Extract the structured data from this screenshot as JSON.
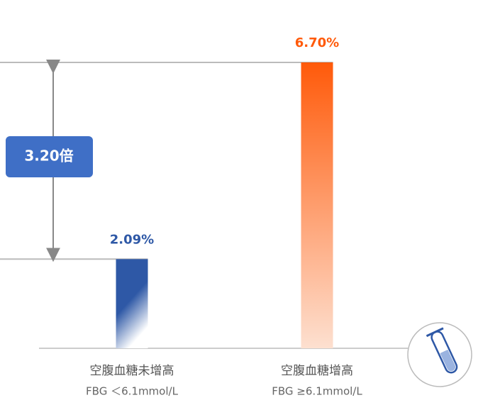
{
  "chart_data": {
    "type": "bar",
    "categories": [
      "空腹血糖未增高",
      "空腹血糖增高"
    ],
    "category_notes": [
      "FBG ＜6.1mmol/L",
      "FBG ≥6.1mmol/L"
    ],
    "values": [
      2.09,
      6.7
    ],
    "value_labels": [
      "2.09%",
      "6.70%"
    ],
    "colors": [
      "#2e58a6",
      "#ff5a0a"
    ],
    "annotation": "3.20倍"
  }
}
